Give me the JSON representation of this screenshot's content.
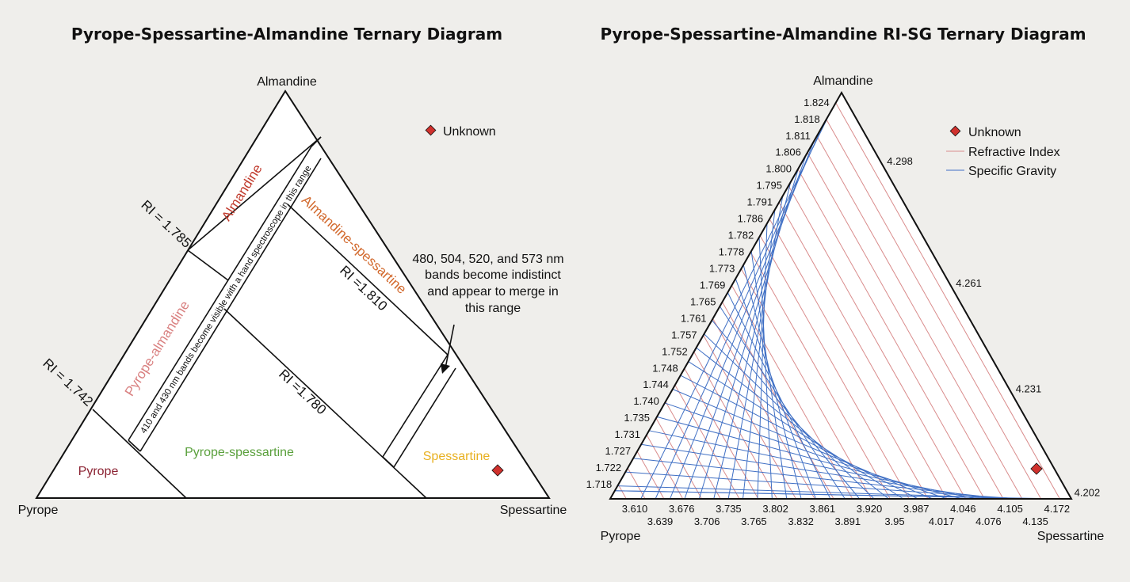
{
  "left_diagram": {
    "title": "Pyrope-Spessartine-Almandine Ternary Diagram",
    "vertices": {
      "top": "Almandine",
      "left": "Pyrope",
      "right": "Spessartine"
    },
    "legend": {
      "unknown": "Unknown"
    },
    "zones": {
      "almandine": "Almandine",
      "pyrope_almandine": "Pyrope-almandine",
      "almandine_spessartine": "Almandine-spessartine",
      "pyrope_spessartine": "Pyrope-spessartine",
      "pyrope": "Pyrope",
      "spessartine": "Spessartine"
    },
    "ri_labels": {
      "ri_1785": "RI = 1.785",
      "ri_1742": "RI = 1.742",
      "ri_1810": "RI =1.810",
      "ri_1780": "RI =1.780"
    },
    "band_note": "410 and 430 nm bands become visible with a hand spectroscope in this range",
    "annotation": [
      "480, 504, 520, and 573 nm",
      "bands become indistinct",
      "and appear to merge in",
      "this range"
    ],
    "zone_colors": {
      "almandine": "#c0392b",
      "pyrope_almandine": "#d98080",
      "almandine_spessartine": "#d2692d",
      "pyrope_spessartine": "#5aa03c",
      "pyrope": "#8b2232",
      "spessartine": "#e8b020"
    },
    "unknown_color": "#d0312d"
  },
  "right_diagram": {
    "title": "Pyrope-Spessartine-Almandine RI-SG Ternary Diagram",
    "vertices": {
      "top": "Almandine",
      "left": "Pyrope",
      "right": "Spessartine"
    },
    "legend": {
      "unknown": "Unknown",
      "ri": "Refractive Index",
      "sg": "Specific Gravity"
    },
    "ri_ticks": [
      "1.824",
      "1.818",
      "1.811",
      "1.806",
      "1.800",
      "1.795",
      "1.791",
      "1.786",
      "1.782",
      "1.778",
      "1.773",
      "1.769",
      "1.765",
      "1.761",
      "1.757",
      "1.752",
      "1.748",
      "1.744",
      "1.740",
      "1.735",
      "1.731",
      "1.727",
      "1.722",
      "1.718"
    ],
    "sg_right_ticks": [
      "4.298",
      "4.261",
      "4.231",
      "4.202"
    ],
    "sg_bottom_row1": [
      "3.610",
      "3.676",
      "3.735",
      "3.802",
      "3.861",
      "3.920",
      "3.987",
      "4.046",
      "4.105",
      "4.172"
    ],
    "sg_bottom_row2": [
      "3.639",
      "3.706",
      "3.765",
      "3.832",
      "3.891",
      "3.95",
      "4.017",
      "4.076",
      "4.135"
    ],
    "colors": {
      "ri": "#d98c8c",
      "sg": "#3f6fc4",
      "unknown": "#d0312d"
    }
  }
}
